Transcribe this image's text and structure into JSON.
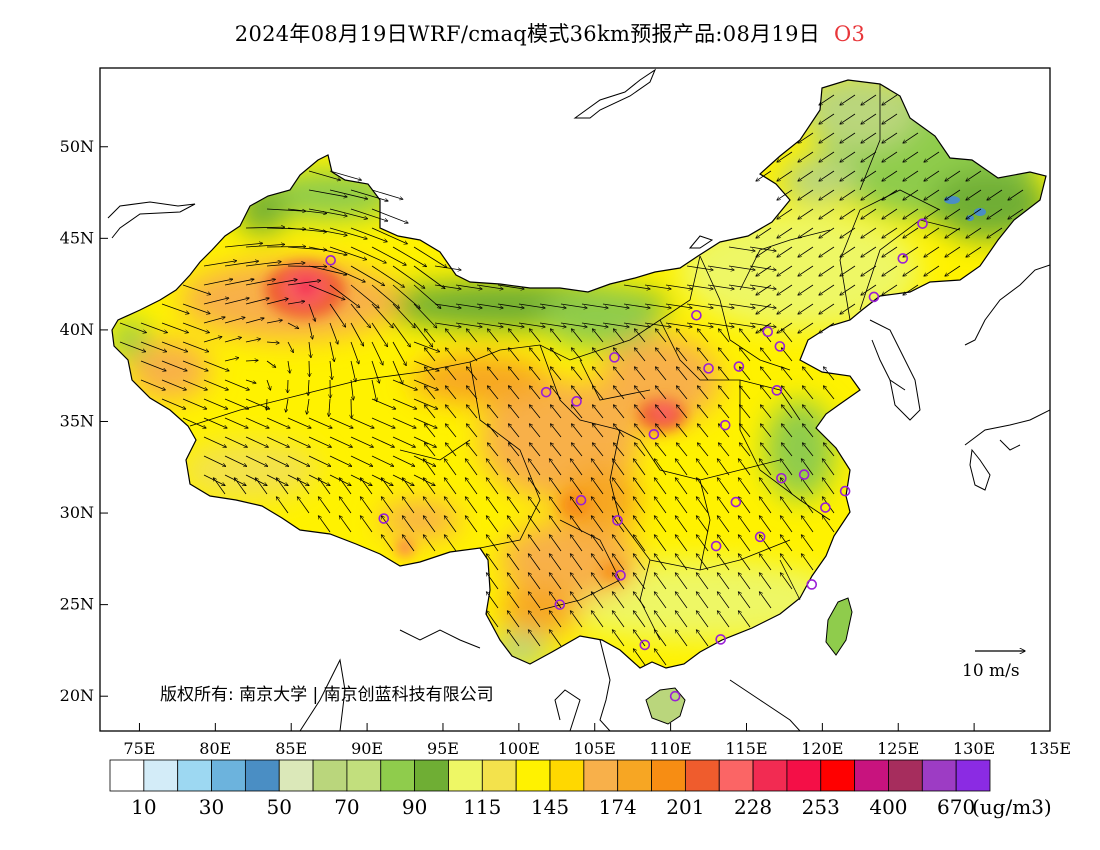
{
  "title": {
    "text": "2024年08月19日WRF/cmaq模式36km预报产品:08月19日",
    "species": "O3"
  },
  "map": {
    "lon_ticks": [
      "75E",
      "80E",
      "85E",
      "90E",
      "95E",
      "100E",
      "105E",
      "110E",
      "115E",
      "120E",
      "125E",
      "130E",
      "135E"
    ],
    "lat_ticks": [
      "20N",
      "25N",
      "30N",
      "35N",
      "40N",
      "45N",
      "50N"
    ],
    "copyright": "版权所有: 南京大学 | 南京创蓝科技有限公司",
    "reference_vector": {
      "label": "10 m/s",
      "speed": 10
    },
    "stations": [
      {
        "lon": 87.6,
        "lat": 43.8
      },
      {
        "lon": 91.1,
        "lat": 29.7
      },
      {
        "lon": 101.8,
        "lat": 36.6
      },
      {
        "lon": 103.8,
        "lat": 36.1
      },
      {
        "lon": 106.3,
        "lat": 38.5
      },
      {
        "lon": 108.9,
        "lat": 34.3
      },
      {
        "lon": 111.7,
        "lat": 40.8
      },
      {
        "lon": 112.5,
        "lat": 37.9
      },
      {
        "lon": 114.5,
        "lat": 38.0
      },
      {
        "lon": 116.4,
        "lat": 39.9
      },
      {
        "lon": 117.2,
        "lat": 39.1
      },
      {
        "lon": 113.6,
        "lat": 34.8
      },
      {
        "lon": 117.0,
        "lat": 36.7
      },
      {
        "lon": 104.1,
        "lat": 30.7
      },
      {
        "lon": 106.5,
        "lat": 29.6
      },
      {
        "lon": 102.7,
        "lat": 25.0
      },
      {
        "lon": 106.7,
        "lat": 26.6
      },
      {
        "lon": 114.3,
        "lat": 30.6
      },
      {
        "lon": 113.0,
        "lat": 28.2
      },
      {
        "lon": 115.9,
        "lat": 28.7
      },
      {
        "lon": 117.3,
        "lat": 31.9
      },
      {
        "lon": 118.8,
        "lat": 32.1
      },
      {
        "lon": 120.2,
        "lat": 30.3
      },
      {
        "lon": 121.5,
        "lat": 31.2
      },
      {
        "lon": 119.3,
        "lat": 26.1
      },
      {
        "lon": 113.3,
        "lat": 23.1
      },
      {
        "lon": 108.3,
        "lat": 22.8
      },
      {
        "lon": 110.3,
        "lat": 20.0
      },
      {
        "lon": 123.4,
        "lat": 41.8
      },
      {
        "lon": 125.3,
        "lat": 43.9
      },
      {
        "lon": 126.6,
        "lat": 45.8
      }
    ]
  },
  "legend": {
    "colors": [
      "#ffffff",
      "#d3ecf8",
      "#9dd8f2",
      "#6cb3dd",
      "#4a8ec4",
      "#dbe8b9",
      "#bad67c",
      "#c2df7d",
      "#8fcc4c",
      "#6fae34",
      "#eef765",
      "#f3e24c",
      "#fff200",
      "#ffd800",
      "#f8b04a",
      "#f7a623",
      "#f78d13",
      "#ef5c2d",
      "#fb6565",
      "#f22b52",
      "#f40f47",
      "#ff0000",
      "#c8137e",
      "#a62d5d",
      "#9d3cc4",
      "#8b2be3"
    ],
    "labels": [
      "10",
      "30",
      "50",
      "70",
      "90",
      "115",
      "145",
      "174",
      "201",
      "228",
      "253",
      "400",
      "670"
    ],
    "unit": "(ug/m3)"
  }
}
